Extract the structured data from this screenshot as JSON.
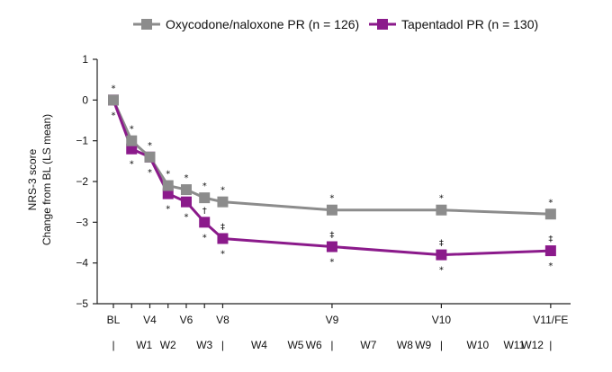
{
  "chart_data": {
    "type": "line",
    "ylabel_lines": [
      "NRS-3 score",
      "Change from BL (LS mean)"
    ],
    "ylim": [
      -5,
      1
    ],
    "yticks": [
      1,
      0,
      -1,
      -2,
      -3,
      -4,
      -5
    ],
    "ytick_labels": [
      "1",
      "0",
      "−1",
      "−2",
      "−3",
      "−4",
      "−5"
    ],
    "x_visits": [
      "BL",
      "",
      "V4",
      "",
      "V6",
      "",
      "V8",
      "V9",
      "V10",
      "V11/FE"
    ],
    "x_weeks": [
      "|",
      "W1",
      "W2",
      "W3",
      "|",
      "W4",
      "W5",
      "W6",
      "|",
      "W7",
      "W8",
      "W9",
      "|",
      "W10",
      "W11",
      "W12",
      "|"
    ],
    "x": [
      0,
      1,
      2,
      3,
      4,
      5,
      6,
      12,
      18,
      24
    ],
    "series": [
      {
        "name": "Oxycodone/naloxone PR (n = 126)",
        "color": "#8c8c8c",
        "values": [
          0,
          -1.0,
          -1.4,
          -2.1,
          -2.2,
          -2.4,
          -2.5,
          -2.7,
          -2.7,
          -2.8
        ],
        "marks_above": [
          "*",
          "*",
          "*",
          "*",
          "*",
          "*",
          "*",
          "*",
          "*",
          "*"
        ]
      },
      {
        "name": "Tapentadol PR (n = 130)",
        "color": "#8b1a8b",
        "values": [
          0,
          -1.2,
          -1.4,
          -2.3,
          -2.5,
          -3.0,
          -3.4,
          -3.6,
          -3.8,
          -3.7
        ],
        "marks_between": [
          "",
          "",
          "",
          "",
          "",
          "†",
          "‡",
          "‡",
          "‡",
          "‡"
        ],
        "marks_below": [
          "*",
          "*",
          "*",
          "*",
          "*",
          "*",
          "*",
          "*",
          "*",
          "*"
        ]
      }
    ]
  }
}
